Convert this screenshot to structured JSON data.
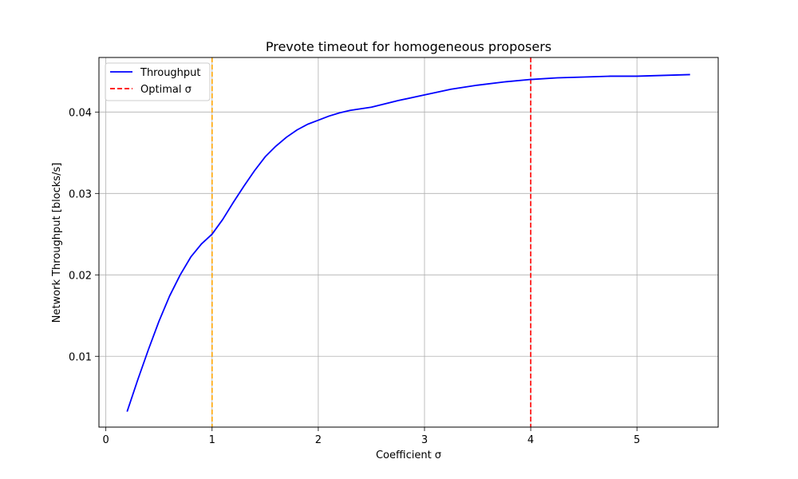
{
  "chart_data": {
    "type": "line",
    "title": "Prevote timeout for homogeneous proposers",
    "xlabel": "Coefficient σ",
    "ylabel": "Network Throughput [blocks/s]",
    "xlim": [
      -0.065,
      5.765
    ],
    "ylim": [
      0.0013,
      0.0467
    ],
    "xticks": [
      0,
      1,
      2,
      3,
      4,
      5
    ],
    "xtick_labels": [
      "0",
      "1",
      "2",
      "3",
      "4",
      "5"
    ],
    "yticks": [
      0.01,
      0.02,
      0.03,
      0.04
    ],
    "ytick_labels": [
      "0.01",
      "0.02",
      "0.03",
      "0.04"
    ],
    "grid": true,
    "legend_position": "upper-left",
    "series": [
      {
        "name": "Throughput",
        "color": "#0000ff",
        "style": "solid",
        "x": [
          0.2,
          0.3,
          0.4,
          0.5,
          0.6,
          0.7,
          0.8,
          0.9,
          1.0,
          1.1,
          1.2,
          1.3,
          1.4,
          1.5,
          1.6,
          1.7,
          1.8,
          1.9,
          2.0,
          2.1,
          2.2,
          2.3,
          2.4,
          2.5,
          2.75,
          3.0,
          3.25,
          3.5,
          3.75,
          4.0,
          4.25,
          4.5,
          4.75,
          5.0,
          5.25,
          5.5
        ],
        "y": [
          0.0032,
          0.0071,
          0.0108,
          0.0143,
          0.0174,
          0.02,
          0.0222,
          0.0238,
          0.025,
          0.0268,
          0.0289,
          0.0309,
          0.0328,
          0.0345,
          0.0358,
          0.0369,
          0.0378,
          0.0385,
          0.039,
          0.0395,
          0.0399,
          0.0402,
          0.0404,
          0.0406,
          0.0414,
          0.0421,
          0.0428,
          0.0433,
          0.0437,
          0.044,
          0.0442,
          0.0443,
          0.0444,
          0.0444,
          0.0445,
          0.0446
        ]
      }
    ],
    "vlines": [
      {
        "name": "Optimal σ",
        "x": 4,
        "color": "#ff0000",
        "style": "dashed",
        "in_legend": true
      },
      {
        "x": 1,
        "color": "#ffa500",
        "style": "dashed",
        "in_legend": false
      }
    ]
  }
}
